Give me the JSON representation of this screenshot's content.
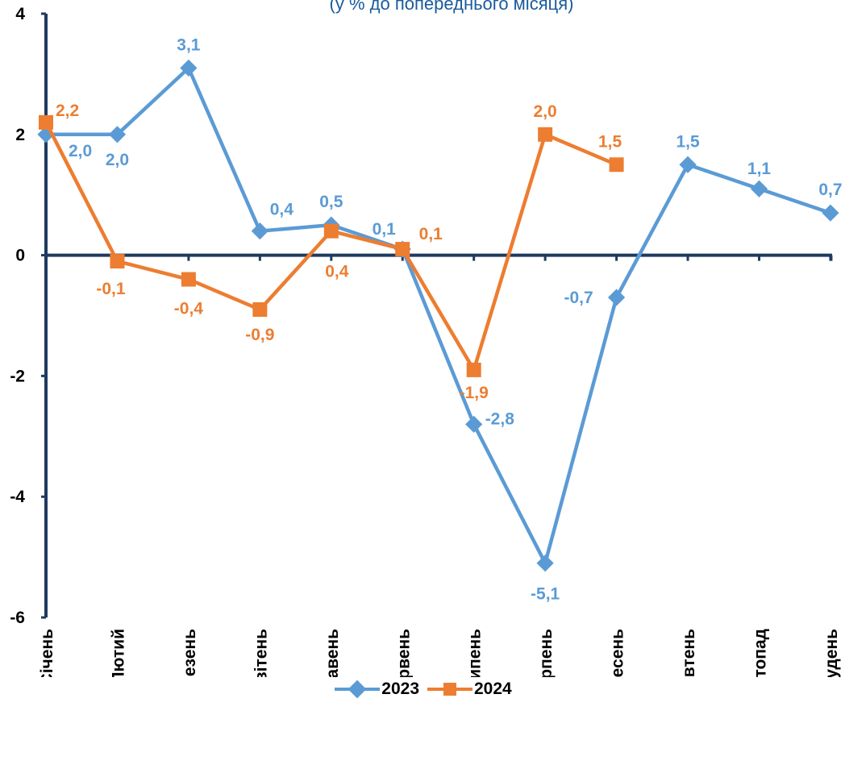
{
  "chart_data": {
    "type": "line",
    "title": "",
    "subtitle": "(у % до попереднього місяця)",
    "xlabel": "",
    "ylabel": "",
    "categories": [
      "Січень",
      "Лютий",
      "Березень",
      "Квітень",
      "Травень",
      "Червень",
      "Липень",
      "Серпень",
      "Вересень",
      "Жовтень",
      "Листопад",
      "Грудень"
    ],
    "ylim": [
      -6,
      4
    ],
    "yticks": [
      -6,
      -4,
      -2,
      0,
      2,
      4
    ],
    "grid": false,
    "legend_position": "bottom",
    "series": [
      {
        "name": "2023",
        "color": "#5b9bd5",
        "marker": "diamond",
        "values": [
          2.0,
          2.0,
          3.1,
          0.4,
          0.5,
          0.1,
          -2.8,
          -5.1,
          -0.7,
          1.5,
          1.1,
          0.7
        ],
        "labels": [
          "2,0",
          "2,0",
          "3,1",
          "0,4",
          "0,5",
          "0,1",
          "-2,8",
          "-5,1",
          "-0,7",
          "1,5",
          "1,1",
          "0,7"
        ]
      },
      {
        "name": "2024",
        "color": "#ed7d31",
        "marker": "square",
        "values": [
          2.2,
          -0.1,
          -0.4,
          -0.9,
          0.4,
          0.1,
          -1.9,
          2.0,
          1.5,
          null,
          null,
          null
        ],
        "labels": [
          "2,2",
          "-0,1",
          "-0,4",
          "-0,9",
          "0,4",
          "0,1",
          "-1,9",
          "2,0",
          "1,5",
          null,
          null,
          null
        ]
      }
    ]
  },
  "axis_color": "#1f3a5f"
}
